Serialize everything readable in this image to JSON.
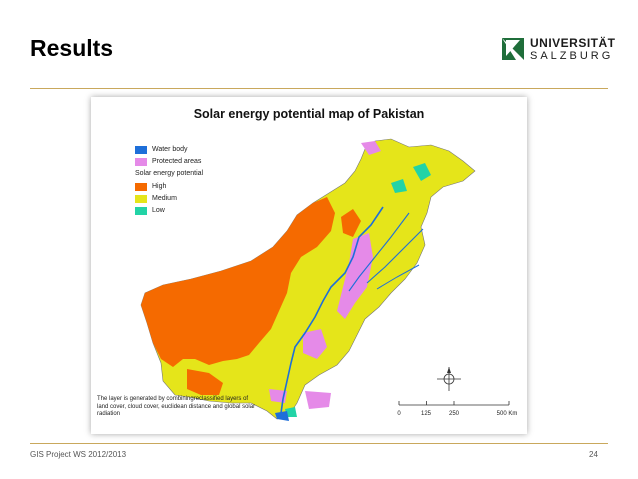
{
  "slide": {
    "title": "Results",
    "footer_left": "GIS Project WS 2012/2013",
    "page_number": "24"
  },
  "logo": {
    "line1": "UNIVERSITÄT",
    "line2": "SALZBURG",
    "color": "#1f6e3a"
  },
  "map": {
    "title": "Solar energy potential map of  Pakistan",
    "legend": {
      "items": [
        {
          "label": "Water body",
          "color": "#1e6fd9"
        },
        {
          "label": "Protected areas",
          "color": "#e58ae8"
        }
      ],
      "section_title": "Solar energy potential",
      "levels": [
        {
          "label": "High",
          "color": "#f56a00"
        },
        {
          "label": "Medium",
          "color": "#e5e51a"
        },
        {
          "label": "Low",
          "color": "#22d3a6"
        }
      ]
    },
    "note": "The layer is generated by combiningreclassified layers of land cover, cloud cover, euclidean distance and global solar radiation",
    "scale": {
      "ticks": [
        "0",
        "125",
        "250",
        "500 Km"
      ]
    },
    "north_arrow": "N"
  }
}
